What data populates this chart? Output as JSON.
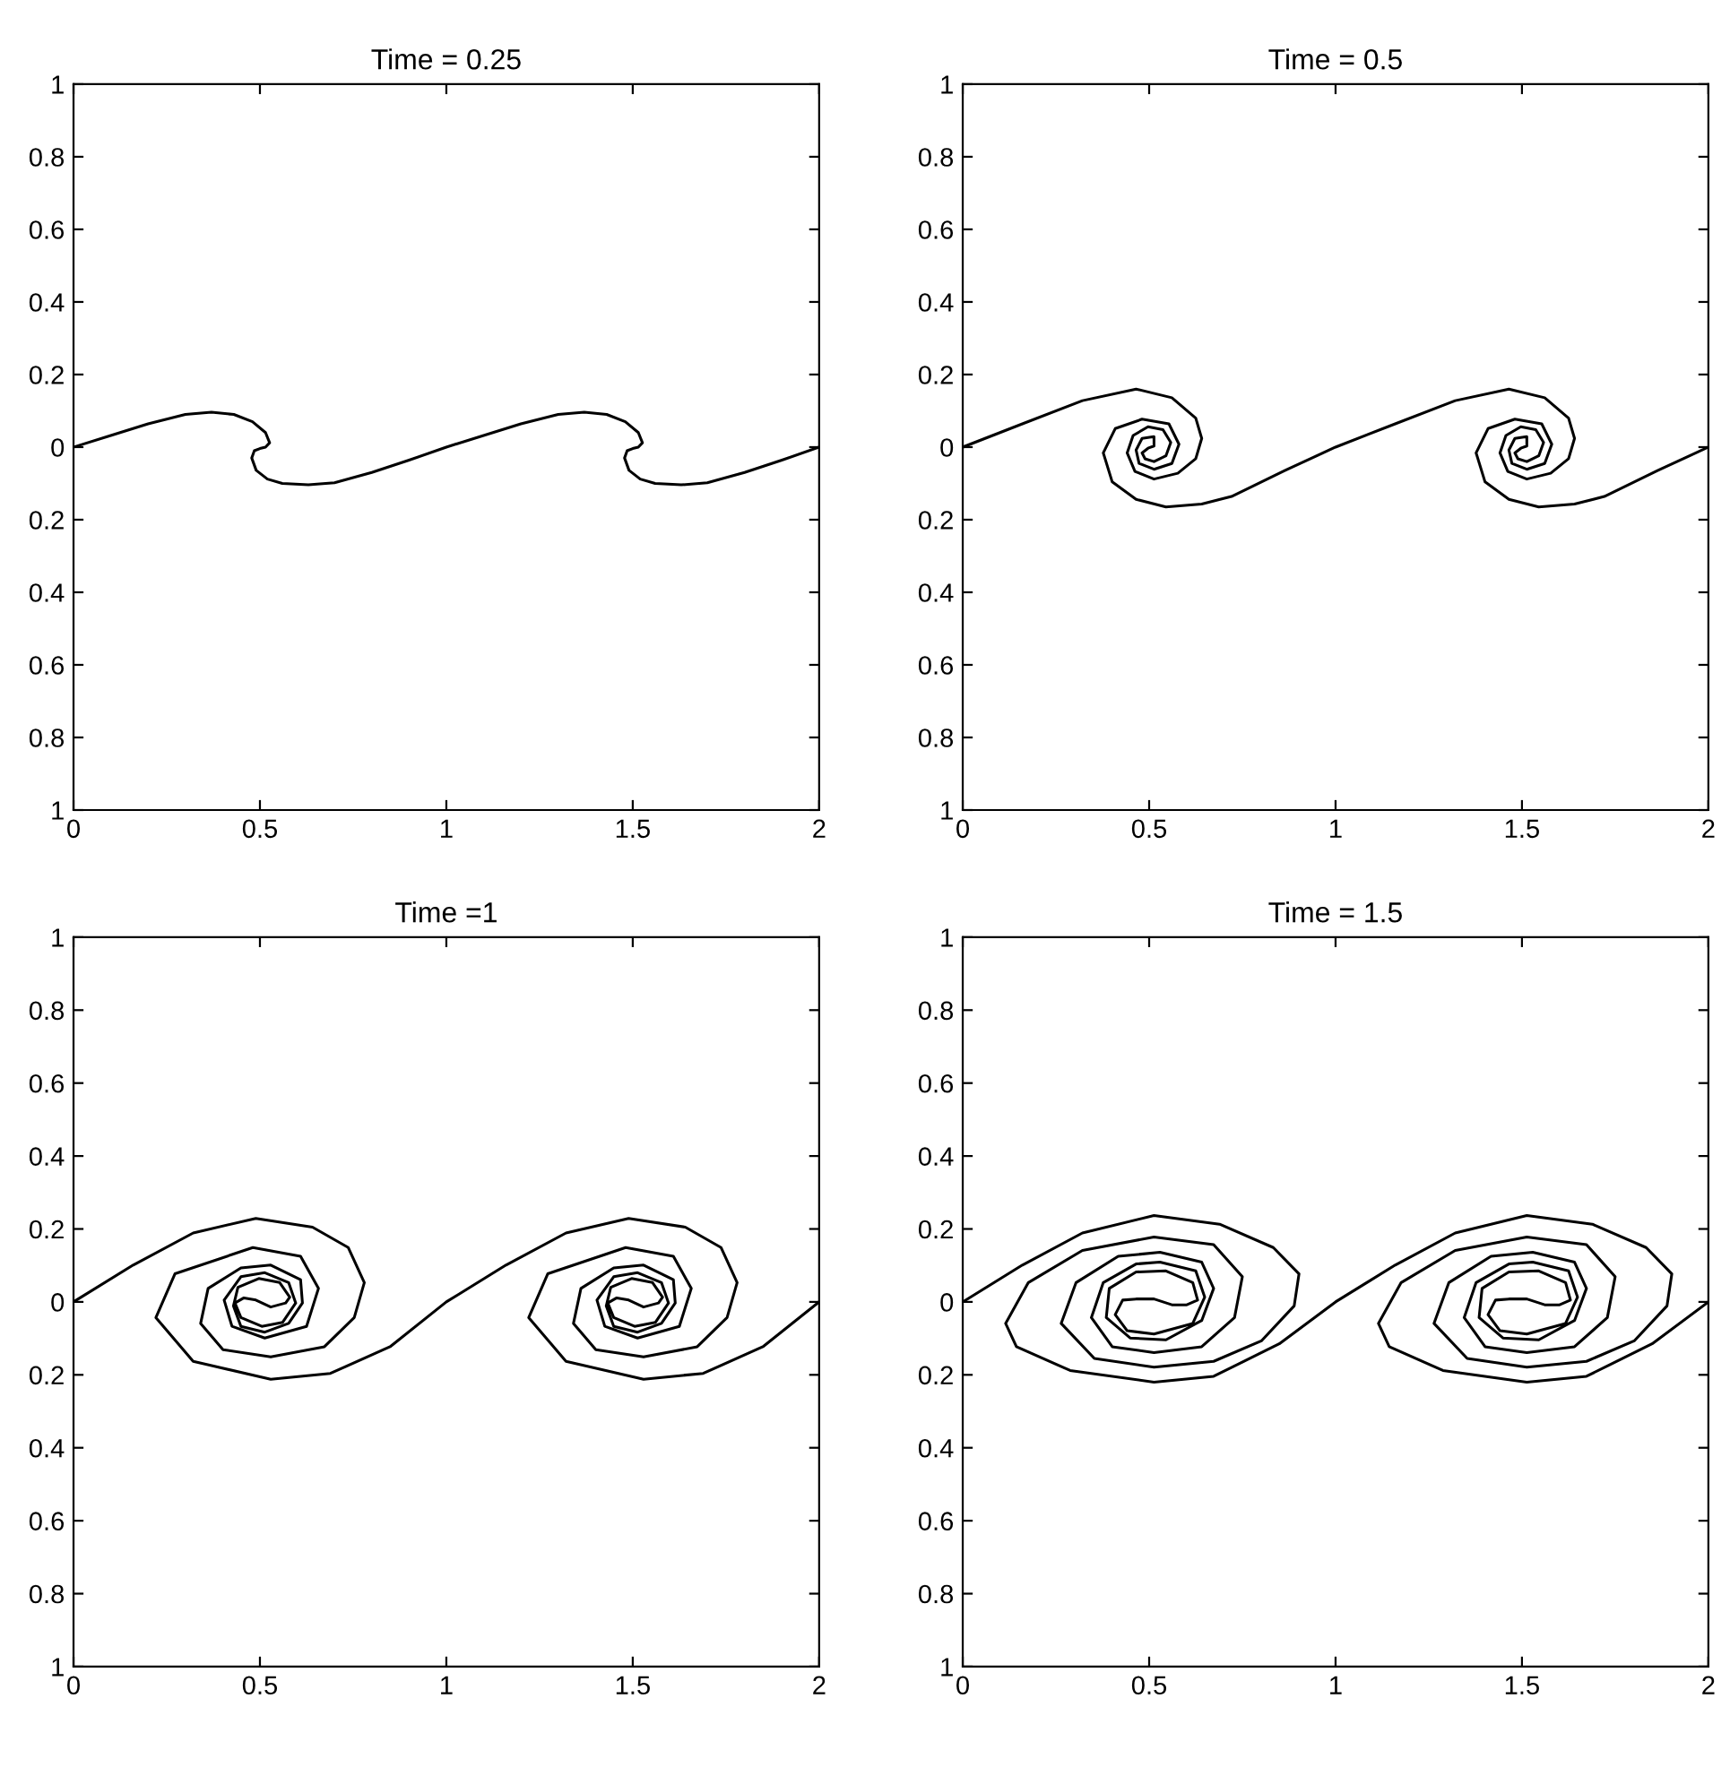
{
  "chart_data": [
    {
      "type": "line",
      "title": "Time = 0.25",
      "xlim": [
        0,
        2
      ],
      "ylim": [
        -1,
        1
      ],
      "xticks": [
        0,
        0.5,
        1,
        1.5,
        2
      ],
      "yticks": [
        {
          "value": -1,
          "label": "1"
        },
        {
          "value": -0.8,
          "label": "0.8"
        },
        {
          "value": -0.6,
          "label": "0.6"
        },
        {
          "value": -0.4,
          "label": "0.4"
        },
        {
          "value": -0.2,
          "label": "0.2"
        },
        0,
        0.2,
        0.4,
        0.6,
        0.8,
        1
      ],
      "grid": false,
      "marker": "none",
      "line_style": "solid",
      "series": [
        {
          "color": "#000000",
          "x": [
            0,
            0.1,
            0.2,
            0.3,
            0.37,
            0.43,
            0.48,
            0.515,
            0.526,
            0.515,
            0.5,
            0.485,
            0.478,
            0.49,
            0.52,
            0.56,
            0.63,
            0.7,
            0.8,
            0.9,
            1,
            1.1,
            1.2,
            1.3,
            1.37,
            1.43,
            1.48,
            1.515,
            1.526,
            1.515,
            1.5,
            1.485,
            1.478,
            1.49,
            1.52,
            1.56,
            1.63,
            1.7,
            1.8,
            1.9,
            2
          ],
          "values": [
            0,
            0.032,
            0.064,
            0.09,
            0.096,
            0.09,
            0.07,
            0.04,
            0.012,
            0.0,
            -0.004,
            -0.01,
            -0.03,
            -0.064,
            -0.088,
            -0.1,
            -0.104,
            -0.098,
            -0.07,
            -0.036,
            0,
            0.032,
            0.064,
            0.09,
            0.096,
            0.09,
            0.07,
            0.04,
            0.012,
            0.0,
            -0.004,
            -0.01,
            -0.03,
            -0.064,
            -0.088,
            -0.1,
            -0.104,
            -0.098,
            -0.07,
            -0.036,
            0
          ]
        }
      ]
    },
    {
      "type": "line",
      "title": "Time = 0.5",
      "xlim": [
        0,
        2
      ],
      "ylim": [
        -1,
        1
      ],
      "xticks": [
        0,
        0.5,
        1,
        1.5,
        2
      ],
      "yticks": [
        {
          "value": -1,
          "label": "1"
        },
        {
          "value": -0.8,
          "label": "0.8"
        },
        {
          "value": -0.6,
          "label": "0.6"
        },
        {
          "value": -0.4,
          "label": "0.4"
        },
        {
          "value": -0.2,
          "label": "0.2"
        },
        0,
        0.2,
        0.4,
        0.6,
        0.8,
        1
      ],
      "grid": false,
      "marker": "none",
      "line_style": "solid",
      "series": [
        {
          "color": "#000000",
          "x": [
            0,
            0.16,
            0.321,
            0.465,
            0.561,
            0.625,
            0.641,
            0.625,
            0.577,
            0.513,
            0.462,
            0.441,
            0.457,
            0.497,
            0.537,
            0.558,
            0.545,
            0.513,
            0.489,
            0.481,
            0.497,
            0.513,
            0.513,
            0.481,
            0.465,
            0.473,
            0.513,
            0.561,
            0.58,
            0.553,
            0.481,
            0.409,
            0.377,
            0.401,
            0.465,
            0.545,
            0.641,
            0.721,
            0.865,
            1,
            1.16,
            1.321,
            1.465,
            1.561,
            1.625,
            1.641,
            1.625,
            1.577,
            1.513,
            1.462,
            1.441,
            1.457,
            1.497,
            1.537,
            1.558,
            1.545,
            1.513,
            1.489,
            1.481,
            1.497,
            1.513,
            1.513,
            1.481,
            1.465,
            1.473,
            1.513,
            1.561,
            1.58,
            1.553,
            1.481,
            1.409,
            1.377,
            1.401,
            1.465,
            1.545,
            1.641,
            1.721,
            1.865,
            2
          ],
          "values": [
            0,
            0.064,
            0.128,
            0.16,
            0.136,
            0.08,
            0.024,
            -0.032,
            -0.072,
            -0.088,
            -0.067,
            -0.016,
            0.032,
            0.056,
            0.048,
            0.013,
            -0.024,
            -0.04,
            -0.032,
            -0.016,
            -0.003,
            0.003,
            0.029,
            0.024,
            -0.008,
            -0.045,
            -0.061,
            -0.045,
            0.008,
            0.064,
            0.077,
            0.051,
            -0.016,
            -0.096,
            -0.144,
            -0.165,
            -0.157,
            -0.136,
            -0.064,
            0,
            0.064,
            0.128,
            0.16,
            0.136,
            0.08,
            0.024,
            -0.032,
            -0.072,
            -0.088,
            -0.067,
            -0.016,
            0.032,
            0.056,
            0.048,
            0.013,
            -0.024,
            -0.04,
            -0.032,
            -0.016,
            -0.003,
            0.003,
            0.029,
            0.024,
            -0.008,
            -0.045,
            -0.061,
            -0.045,
            0.008,
            0.064,
            0.077,
            0.051,
            -0.016,
            -0.096,
            -0.144,
            -0.165,
            -0.157,
            -0.136,
            -0.064,
            0
          ]
        }
      ]
    },
    {
      "type": "line",
      "title": "Time =1",
      "xlim": [
        0,
        2
      ],
      "ylim": [
        -1,
        1
      ],
      "xticks": [
        0,
        0.5,
        1,
        1.5,
        2
      ],
      "yticks": [
        {
          "value": -1,
          "label": "1"
        },
        {
          "value": -0.8,
          "label": "0.8"
        },
        {
          "value": -0.6,
          "label": "0.6"
        },
        {
          "value": -0.4,
          "label": "0.4"
        },
        {
          "value": -0.2,
          "label": "0.2"
        },
        0,
        0.2,
        0.4,
        0.6,
        0.8,
        1
      ],
      "grid": false,
      "marker": "none",
      "line_style": "solid",
      "series": [
        {
          "color": "#000000",
          "x": [
            0,
            0.16,
            0.321,
            0.489,
            0.641,
            0.737,
            0.78,
            0.753,
            0.673,
            0.529,
            0.401,
            0.341,
            0.361,
            0.449,
            0.529,
            0.609,
            0.614,
            0.577,
            0.513,
            0.449,
            0.429,
            0.441,
            0.497,
            0.553,
            0.58,
            0.569,
            0.529,
            0.489,
            0.457,
            0.433,
            0.449,
            0.505,
            0.561,
            0.596,
            0.577,
            0.513,
            0.449,
            0.404,
            0.425,
            0.513,
            0.625,
            0.657,
            0.609,
            0.481,
            0.272,
            0.221,
            0.321,
            0.529,
            0.689,
            0.849,
            1,
            1.16,
            1.321,
            1.489,
            1.641,
            1.737,
            1.78,
            1.753,
            1.673,
            1.529,
            1.401,
            1.341,
            1.361,
            1.449,
            1.529,
            1.609,
            1.614,
            1.577,
            1.513,
            1.449,
            1.429,
            1.441,
            1.497,
            1.553,
            1.58,
            1.569,
            1.529,
            1.489,
            1.457,
            1.433,
            1.449,
            1.505,
            1.561,
            1.596,
            1.577,
            1.513,
            1.449,
            1.404,
            1.425,
            1.513,
            1.625,
            1.657,
            1.609,
            1.481,
            1.272,
            1.221,
            1.321,
            1.529,
            1.689,
            1.849,
            2
          ],
          "values": [
            0,
            0.101,
            0.189,
            0.229,
            0.205,
            0.149,
            0.053,
            -0.043,
            -0.123,
            -0.151,
            -0.131,
            -0.059,
            0.037,
            0.093,
            0.101,
            0.061,
            -0.003,
            -0.059,
            -0.083,
            -0.067,
            -0.011,
            0.04,
            0.064,
            0.053,
            0.013,
            -0.003,
            -0.014,
            0.005,
            0.011,
            -0.003,
            -0.043,
            -0.067,
            -0.056,
            -0.003,
            0.053,
            0.08,
            0.069,
            0.005,
            -0.067,
            -0.099,
            -0.067,
            0.037,
            0.125,
            0.149,
            0.077,
            -0.043,
            -0.163,
            -0.212,
            -0.196,
            -0.123,
            0,
            0.101,
            0.189,
            0.229,
            0.205,
            0.149,
            0.053,
            -0.043,
            -0.123,
            -0.151,
            -0.131,
            -0.059,
            0.037,
            0.093,
            0.101,
            0.061,
            -0.003,
            -0.059,
            -0.083,
            -0.067,
            -0.011,
            0.04,
            0.064,
            0.053,
            0.013,
            -0.003,
            -0.014,
            0.005,
            0.011,
            -0.003,
            -0.043,
            -0.067,
            -0.056,
            -0.003,
            0.053,
            0.08,
            0.069,
            0.005,
            -0.067,
            -0.099,
            -0.067,
            0.037,
            0.125,
            0.149,
            0.077,
            -0.043,
            -0.163,
            -0.212,
            -0.196,
            -0.123,
            0
          ]
        }
      ]
    },
    {
      "type": "line",
      "title": "Time = 1.5",
      "xlim": [
        0,
        2
      ],
      "ylim": [
        -1,
        1
      ],
      "xticks": [
        0,
        0.5,
        1,
        1.5,
        2
      ],
      "yticks": [
        {
          "value": -1,
          "label": "1"
        },
        {
          "value": -0.8,
          "label": "0.8"
        },
        {
          "value": -0.6,
          "label": "0.6"
        },
        {
          "value": -0.4,
          "label": "0.4"
        },
        {
          "value": -0.2,
          "label": "0.2"
        },
        0,
        0.2,
        0.4,
        0.6,
        0.8,
        1
      ],
      "grid": false,
      "marker": "none",
      "line_style": "solid",
      "series": [
        {
          "color": "#000000",
          "x": [
            0,
            0.16,
            0.321,
            0.513,
            0.689,
            0.833,
            0.902,
            0.889,
            0.801,
            0.673,
            0.513,
            0.353,
            0.264,
            0.304,
            0.417,
            0.529,
            0.641,
            0.673,
            0.641,
            0.545,
            0.449,
            0.385,
            0.393,
            0.465,
            0.545,
            0.617,
            0.63,
            0.601,
            0.561,
            0.513,
            0.465,
            0.429,
            0.409,
            0.441,
            0.513,
            0.617,
            0.649,
            0.625,
            0.529,
            0.465,
            0.377,
            0.345,
            0.401,
            0.513,
            0.641,
            0.729,
            0.75,
            0.673,
            0.513,
            0.321,
            0.176,
            0.115,
            0.144,
            0.288,
            0.513,
            0.673,
            0.849,
            1,
            1.16,
            1.321,
            1.513,
            1.689,
            1.833,
            1.902,
            1.889,
            1.801,
            1.673,
            1.513,
            1.353,
            1.264,
            1.304,
            1.417,
            1.529,
            1.641,
            1.673,
            1.641,
            1.545,
            1.449,
            1.385,
            1.393,
            1.465,
            1.545,
            1.617,
            1.63,
            1.601,
            1.561,
            1.513,
            1.465,
            1.429,
            1.409,
            1.441,
            1.513,
            1.617,
            1.649,
            1.625,
            1.529,
            1.465,
            1.377,
            1.345,
            1.401,
            1.513,
            1.641,
            1.729,
            1.75,
            1.673,
            1.513,
            1.321,
            1.176,
            1.115,
            1.144,
            1.288,
            1.513,
            1.673,
            1.849,
            2
          ],
          "values": [
            0,
            0.101,
            0.189,
            0.237,
            0.213,
            0.149,
            0.077,
            -0.011,
            -0.107,
            -0.163,
            -0.179,
            -0.155,
            -0.059,
            0.053,
            0.125,
            0.136,
            0.109,
            0.037,
            -0.051,
            -0.104,
            -0.099,
            -0.043,
            0.037,
            0.082,
            0.085,
            0.053,
            0.005,
            -0.008,
            -0.008,
            0.008,
            0.008,
            0.005,
            -0.035,
            -0.079,
            -0.088,
            -0.059,
            0.013,
            0.085,
            0.109,
            0.104,
            0.053,
            -0.043,
            -0.123,
            -0.139,
            -0.123,
            -0.043,
            0.069,
            0.157,
            0.178,
            0.141,
            0.053,
            -0.059,
            -0.123,
            -0.188,
            -0.22,
            -0.204,
            -0.115,
            0,
            0.101,
            0.189,
            0.237,
            0.213,
            0.149,
            0.077,
            -0.011,
            -0.107,
            -0.163,
            -0.179,
            -0.155,
            -0.059,
            0.053,
            0.125,
            0.136,
            0.109,
            0.037,
            -0.051,
            -0.104,
            -0.099,
            -0.043,
            0.037,
            0.082,
            0.085,
            0.053,
            0.005,
            -0.008,
            -0.008,
            0.008,
            0.008,
            0.005,
            -0.035,
            -0.079,
            -0.088,
            -0.059,
            0.013,
            0.085,
            0.109,
            0.104,
            0.053,
            -0.043,
            -0.123,
            -0.139,
            -0.123,
            -0.043,
            0.069,
            0.157,
            0.178,
            0.141,
            0.053,
            -0.059,
            -0.123,
            -0.188,
            -0.22,
            -0.204,
            -0.115,
            0
          ]
        }
      ]
    }
  ]
}
